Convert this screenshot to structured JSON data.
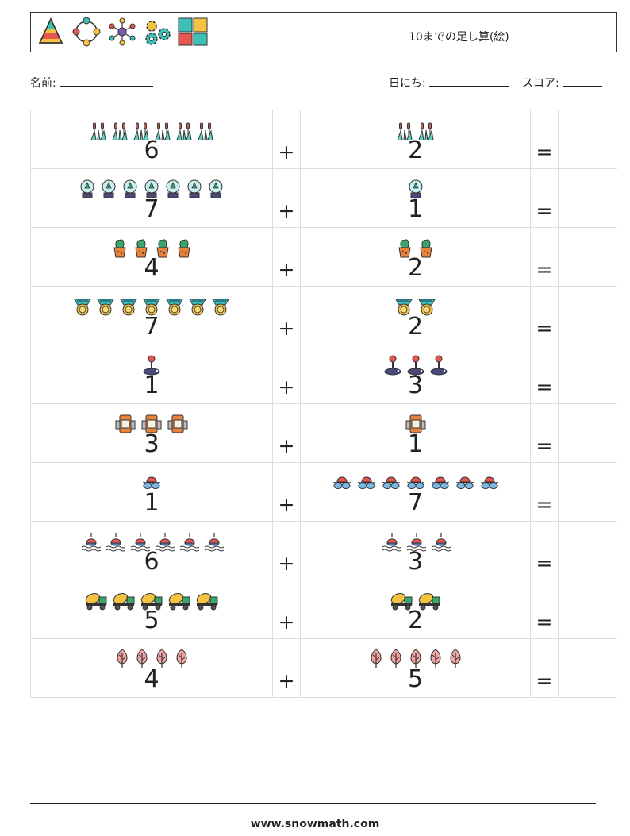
{
  "header": {
    "title": "10までの足し算(絵)",
    "icons": [
      "pyramid-icon",
      "cycle-icon",
      "network-icon",
      "gears-icon",
      "puzzle-icon"
    ]
  },
  "info": {
    "name_label": "名前:",
    "date_label": "日にち:",
    "score_label": "スコア:"
  },
  "problems": [
    {
      "a": "6",
      "b": "2",
      "op": "+",
      "eq": "=",
      "icon": "reeds-icon"
    },
    {
      "a": "7",
      "b": "1",
      "op": "+",
      "eq": "=",
      "icon": "snow-globe-icon"
    },
    {
      "a": "4",
      "b": "2",
      "op": "+",
      "eq": "=",
      "icon": "potted-plant-icon"
    },
    {
      "a": "7",
      "b": "2",
      "op": "+",
      "eq": "=",
      "icon": "medal-icon"
    },
    {
      "a": "1",
      "b": "3",
      "op": "+",
      "eq": "=",
      "icon": "joystick-icon"
    },
    {
      "a": "3",
      "b": "1",
      "op": "+",
      "eq": "=",
      "icon": "barrel-icon"
    },
    {
      "a": "1",
      "b": "7",
      "op": "+",
      "eq": "=",
      "icon": "sunglasses-icon"
    },
    {
      "a": "6",
      "b": "3",
      "op": "+",
      "eq": "=",
      "icon": "fishing-float-icon"
    },
    {
      "a": "5",
      "b": "2",
      "op": "+",
      "eq": "=",
      "icon": "cement-truck-icon"
    },
    {
      "a": "4",
      "b": "5",
      "op": "+",
      "eq": "=",
      "icon": "tree-icon"
    }
  ],
  "footer": {
    "site": "www.snowmath.com"
  }
}
